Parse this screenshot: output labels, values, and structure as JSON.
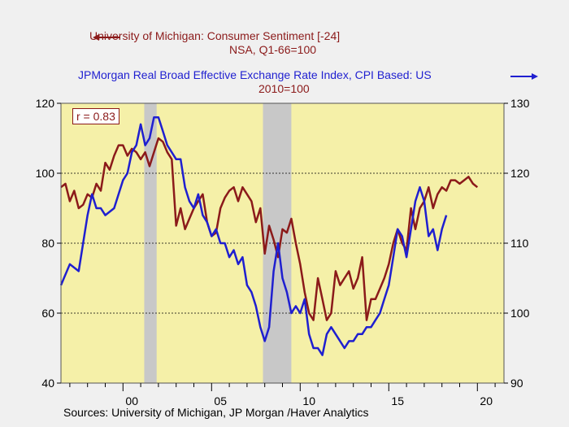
{
  "legend": {
    "series1_line1": "University of Michigan: Consumer Sentiment [-24]",
    "series1_line2": "NSA, Q1-66=100",
    "series2_line1": "JPMorgan Real Broad Effective Exchange Rate Index, CPI Based: US",
    "series2_line2": "2010=100"
  },
  "annotation": "r = 0.83",
  "source": "Sources:  University of Michigan, JP Morgan /Haver Analytics",
  "colors": {
    "sentiment": "#8b1a1a",
    "exchange": "#1f1fd0",
    "plot_bg": "#f5f0a8",
    "recession": "#c8c8c8"
  },
  "chart_data": {
    "type": "line",
    "x_ticks": [
      "00",
      "05",
      "10",
      "15",
      "20"
    ],
    "x_range": [
      1996.5,
      2021.5
    ],
    "y_left": {
      "range": [
        40,
        120
      ],
      "ticks": [
        40,
        60,
        80,
        100,
        120
      ]
    },
    "y_right": {
      "range": [
        90,
        130
      ],
      "ticks": [
        90,
        100,
        110,
        120,
        130
      ]
    },
    "grid": "dashed horizontal at 60, 80, 100",
    "recessions": [
      [
        2001.2,
        2001.9
      ],
      [
        2007.9,
        2009.5
      ]
    ],
    "series": [
      {
        "name": "University of Michigan: Consumer Sentiment [-24]",
        "axis": "left",
        "x": [
          1996.5,
          1996.75,
          1997.0,
          1997.25,
          1997.5,
          1997.75,
          1998.0,
          1998.25,
          1998.5,
          1998.75,
          1999.0,
          1999.25,
          1999.5,
          1999.75,
          2000.0,
          2000.25,
          2000.5,
          2000.75,
          2001.0,
          2001.25,
          2001.5,
          2001.75,
          2002.0,
          2002.25,
          2002.5,
          2002.75,
          2003.0,
          2003.25,
          2003.5,
          2003.75,
          2004.0,
          2004.25,
          2004.5,
          2004.75,
          2005.0,
          2005.25,
          2005.5,
          2005.75,
          2006.0,
          2006.25,
          2006.5,
          2006.75,
          2007.0,
          2007.25,
          2007.5,
          2007.75,
          2008.0,
          2008.25,
          2008.5,
          2008.75,
          2009.0,
          2009.25,
          2009.5,
          2009.75,
          2010.0,
          2010.25,
          2010.5,
          2010.75,
          2011.0,
          2011.25,
          2011.5,
          2011.75,
          2012.0,
          2012.25,
          2012.5,
          2012.75,
          2013.0,
          2013.25,
          2013.5,
          2013.75,
          2014.0,
          2014.25,
          2014.5,
          2014.75,
          2015.0,
          2015.25,
          2015.5,
          2015.75,
          2016.0,
          2016.25,
          2016.5,
          2016.75,
          2017.0,
          2017.25,
          2017.5,
          2017.75,
          2018.0,
          2018.25,
          2018.5,
          2018.75,
          2019.0,
          2019.25,
          2019.5,
          2019.75,
          2020.0
        ],
        "values": [
          96,
          97,
          92,
          95,
          90,
          91,
          94,
          93,
          97,
          95,
          103,
          101,
          105,
          108,
          108,
          105,
          107,
          106,
          104,
          106,
          102,
          106,
          110,
          109,
          106,
          104,
          85,
          90,
          84,
          87,
          90,
          92,
          94,
          86,
          82,
          83,
          90,
          93,
          95,
          96,
          92,
          96,
          94,
          92,
          86,
          90,
          77,
          85,
          81,
          76,
          84,
          83,
          87,
          80,
          74,
          66,
          60,
          58,
          70,
          64,
          58,
          60,
          72,
          68,
          70,
          72,
          67,
          70,
          76,
          58,
          64,
          64,
          67,
          70,
          74,
          80,
          84,
          80,
          78,
          90,
          84,
          90,
          92,
          96,
          90,
          94,
          96,
          95,
          98,
          98,
          97,
          98,
          99,
          97,
          96
        ]
      },
      {
        "name": "JPMorgan Real Broad Effective Exchange Rate Index, CPI Based: US",
        "axis": "right",
        "x": [
          1996.5,
          1997.0,
          1997.5,
          1998.0,
          1998.25,
          1998.5,
          1998.75,
          1999.0,
          1999.5,
          2000.0,
          2000.25,
          2000.5,
          2000.75,
          2001.0,
          2001.25,
          2001.5,
          2001.75,
          2002.0,
          2002.25,
          2002.5,
          2002.75,
          2003.0,
          2003.25,
          2003.5,
          2003.75,
          2004.0,
          2004.25,
          2004.5,
          2004.75,
          2005.0,
          2005.25,
          2005.5,
          2005.75,
          2006.0,
          2006.25,
          2006.5,
          2006.75,
          2007.0,
          2007.25,
          2007.5,
          2007.75,
          2008.0,
          2008.25,
          2008.5,
          2008.75,
          2009.0,
          2009.25,
          2009.5,
          2009.75,
          2010.0,
          2010.25,
          2010.5,
          2010.75,
          2011.0,
          2011.25,
          2011.5,
          2011.75,
          2012.0,
          2012.25,
          2012.5,
          2012.75,
          2013.0,
          2013.25,
          2013.5,
          2013.75,
          2014.0,
          2014.25,
          2014.5,
          2014.75,
          2015.0,
          2015.25,
          2015.5,
          2015.75,
          2016.0,
          2016.25,
          2016.5,
          2016.75,
          2017.0,
          2017.25,
          2017.5,
          2017.75,
          2018.0,
          2018.25
        ],
        "values": [
          104,
          107,
          106,
          114,
          117,
          115,
          115,
          114,
          115,
          119,
          120,
          123,
          124,
          127,
          124,
          125,
          128,
          128,
          126,
          124,
          123,
          122,
          122,
          118,
          116,
          115,
          117,
          114,
          113,
          111,
          112,
          110,
          110,
          108,
          109,
          107,
          108,
          104,
          103,
          101,
          98,
          96,
          98,
          106,
          110,
          105,
          103,
          100,
          101,
          100,
          102,
          97,
          95,
          95,
          94,
          97,
          98,
          97,
          96,
          95,
          96,
          96,
          97,
          97,
          98,
          98,
          99,
          100,
          102,
          104,
          108,
          112,
          111,
          108,
          112,
          116,
          118,
          116,
          111,
          112,
          109,
          112,
          114
        ]
      }
    ]
  }
}
